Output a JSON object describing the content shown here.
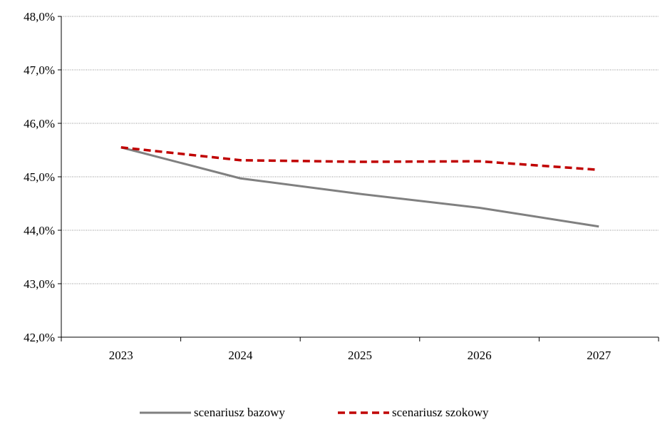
{
  "chart_data": {
    "type": "line",
    "categories": [
      "2023",
      "2024",
      "2025",
      "2026",
      "2027"
    ],
    "series": [
      {
        "name": "scenariusz bazowy",
        "values": [
          45.55,
          44.97,
          44.68,
          44.42,
          44.07
        ],
        "color": "#808080",
        "style": "solid"
      },
      {
        "name": "scenariusz szokowy",
        "values": [
          45.55,
          45.31,
          45.28,
          45.29,
          45.13
        ],
        "color": "#c00000",
        "style": "dashed"
      }
    ],
    "ylim": [
      42,
      48
    ],
    "yticks": [
      42,
      43,
      44,
      45,
      46,
      47,
      48
    ],
    "ytick_labels": [
      "42,0%",
      "43,0%",
      "44,0%",
      "45,0%",
      "46,0%",
      "47,0%",
      "48,0%"
    ],
    "grid": true,
    "legend_position": "bottom"
  }
}
